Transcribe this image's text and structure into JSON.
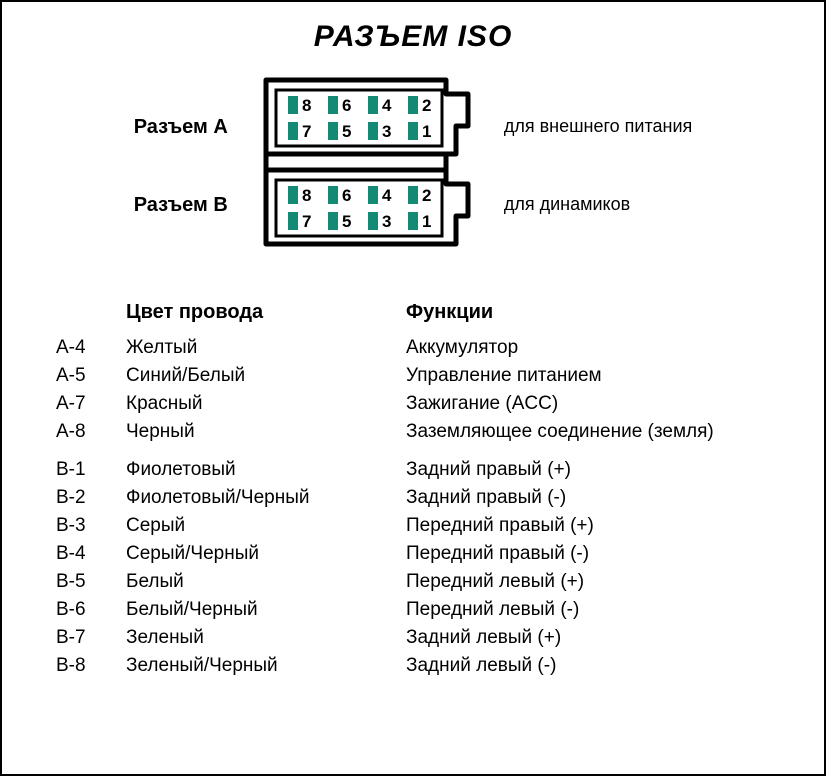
{
  "title": "РАЗЪЕМ ISO",
  "labels": {
    "connector_a": "Разъем А",
    "connector_b": "Разъем B",
    "right_a": "для внешнего питания",
    "right_b": "для динамиков"
  },
  "table": {
    "headers": {
      "pin": "",
      "color": "Цвет провода",
      "func": "Функции"
    },
    "group_a": [
      {
        "pin": "А-4",
        "color": "Желтый",
        "func": "Аккумулятор"
      },
      {
        "pin": "А-5",
        "color": "Синий/Белый",
        "func": "Управление питанием"
      },
      {
        "pin": "А-7",
        "color": "Красный",
        "func": "Зажигание (ACC)"
      },
      {
        "pin": "А-8",
        "color": "Черный",
        "func": "Заземляющее соединение (земля)"
      }
    ],
    "group_b": [
      {
        "pin": "B-1",
        "color": "Фиолетовый",
        "func": "Задний правый (+)"
      },
      {
        "pin": "B-2",
        "color": "Фиолетовый/Черный",
        "func": "Задний правый (-)"
      },
      {
        "pin": "B-3",
        "color": "Серый",
        "func": "Передний правый (+)"
      },
      {
        "pin": "B-4",
        "color": "Серый/Черный",
        "func": "Передний правый (-)"
      },
      {
        "pin": "B-5",
        "color": "Белый",
        "func": "Передний левый (+)"
      },
      {
        "pin": "B-6",
        "color": "Белый/Черный",
        "func": "Передний левый (-)"
      },
      {
        "pin": "B-7",
        "color": "Зеленый",
        "func": "Задний левый (+)"
      },
      {
        "pin": "B-8",
        "color": "Зеленый/Черный",
        "func": "Задний левый (-)"
      }
    ]
  },
  "connector": {
    "pin_fill": "#148a74",
    "stroke": "#000000",
    "stroke_width": 5,
    "label_font_size": 17,
    "rows": [
      {
        "nums": [
          "8",
          "6",
          "4",
          "2"
        ]
      },
      {
        "nums": [
          "7",
          "5",
          "3",
          "1"
        ]
      },
      {
        "nums": [
          "8",
          "6",
          "4",
          "2"
        ]
      },
      {
        "nums": [
          "7",
          "5",
          "3",
          "1"
        ]
      }
    ]
  }
}
